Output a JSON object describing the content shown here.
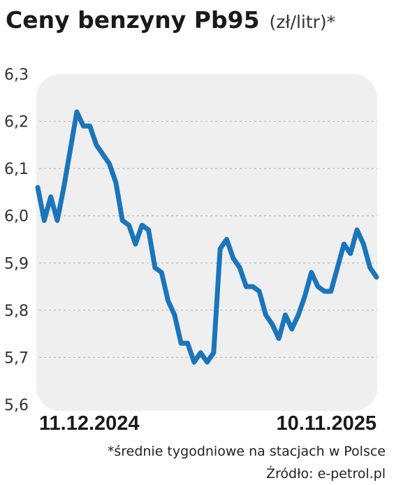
{
  "chart_data": {
    "type": "line",
    "title": "Ceny benzyny Pb95",
    "subtitle": "(zł/litr)*",
    "x_start_label": "11.12.2024",
    "x_end_label": "10.11.2025",
    "yticks": [
      "6,3",
      "6,2",
      "6,1",
      "6,0",
      "5,9",
      "5,8",
      "5,7",
      "5,6"
    ],
    "ylim": [
      5.6,
      6.3
    ],
    "grid": true,
    "series": [
      {
        "color": "#1b75bb",
        "values": [
          6.06,
          5.99,
          6.04,
          5.99,
          6.06,
          6.14,
          6.22,
          6.19,
          6.19,
          6.15,
          6.13,
          6.11,
          6.07,
          5.99,
          5.98,
          5.94,
          5.98,
          5.97,
          5.89,
          5.88,
          5.82,
          5.79,
          5.73,
          5.73,
          5.69,
          5.71,
          5.69,
          5.71,
          5.93,
          5.95,
          5.91,
          5.89,
          5.85,
          5.85,
          5.84,
          5.79,
          5.77,
          5.74,
          5.79,
          5.76,
          5.79,
          5.83,
          5.88,
          5.85,
          5.84,
          5.84,
          5.89,
          5.94,
          5.92,
          5.97,
          5.94,
          5.89,
          5.87
        ]
      }
    ],
    "footnote": "*średnie tygodniowe na stacjach w Polsce",
    "source": "Źródło: e-petrol.pl"
  }
}
